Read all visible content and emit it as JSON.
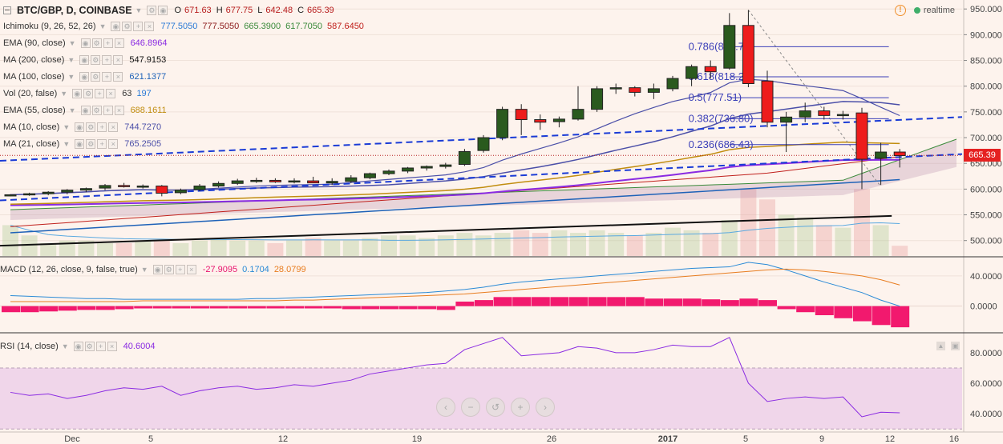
{
  "header": {
    "symbol": "BTC/GBP, D, COINBASE",
    "ohlc": {
      "o_label": "O",
      "o": "671.63",
      "h_label": "H",
      "h": "677.75",
      "l_label": "L",
      "l": "642.48",
      "c_label": "C",
      "c": "665.39"
    },
    "realtime_label": "realtime",
    "warning_symbol": "!"
  },
  "indicators": [
    {
      "name": "Ichimoku (9, 26, 52, 26)",
      "values": [
        "777.5050",
        "777.5050",
        "665.3900",
        "617.7050",
        "587.6450"
      ],
      "colors": [
        "#2a7ad6",
        "#8b1a1a",
        "#3a8a3a",
        "#3a8a3a",
        "#c0201c"
      ]
    },
    {
      "name": "EMA (90, close)",
      "values": [
        "646.8964"
      ],
      "colors": [
        "#8a2be2"
      ]
    },
    {
      "name": "MA (200, close)",
      "values": [
        "547.9153"
      ],
      "colors": [
        "#111111"
      ]
    },
    {
      "name": "MA (100, close)",
      "values": [
        "621.1377"
      ],
      "colors": [
        "#1e62b8"
      ]
    },
    {
      "name": "Vol (20, false)",
      "values": [
        "63",
        "197"
      ],
      "colors": [
        "#333333",
        "#2a7ad6"
      ]
    },
    {
      "name": "EMA (55, close)",
      "values": [
        "688.1611"
      ],
      "colors": [
        "#c18d0f"
      ]
    },
    {
      "name": "MA (10, close)",
      "values": [
        "744.7270"
      ],
      "colors": [
        "#4b4fa8"
      ]
    },
    {
      "name": "MA (21, close)",
      "values": [
        "765.2505"
      ],
      "colors": [
        "#4b4fa8"
      ]
    }
  ],
  "macd_legend": {
    "name": "MACD (12, 26, close, 9, false, true)",
    "values": [
      "-27.9095",
      "0.1704",
      "28.0799"
    ],
    "colors": [
      "#e8156f",
      "#2a8ad6",
      "#e87d20"
    ]
  },
  "rsi_legend": {
    "name": "RSI (14, close)",
    "values": [
      "40.6004"
    ],
    "colors": [
      "#8a2be2"
    ]
  },
  "price_axis": [
    "950.000",
    "900.000",
    "850.000",
    "800.000",
    "750.000",
    "700.000",
    "650.000",
    "600.000",
    "550.000",
    "500.000"
  ],
  "macd_axis": [
    "40.0000",
    "0.0000"
  ],
  "rsi_axis": [
    "80.0000",
    "60.0000",
    "40.0000"
  ],
  "time_axis": [
    "Dec",
    "5",
    "12",
    "19",
    "26",
    "2017",
    "5",
    "9",
    "12",
    "16"
  ],
  "last_price_label": "665.39",
  "navigation": {
    "zoom_out": "−",
    "zoom_in": "+",
    "scroll_left": "‹",
    "reset": "↺",
    "scroll_right": "›"
  },
  "chart_data": [
    {
      "type": "candlestick",
      "title": "BTC/GBP, D, COINBASE",
      "ylim": [
        470,
        955
      ],
      "ohlc": [
        [
          588,
          590,
          586,
          589
        ],
        [
          589,
          593,
          587,
          591
        ],
        [
          591,
          596,
          588,
          594
        ],
        [
          594,
          600,
          590,
          598
        ],
        [
          598,
          603,
          594,
          601
        ],
        [
          602,
          610,
          598,
          607
        ],
        [
          607,
          612,
          603,
          605
        ],
        [
          605,
          609,
          601,
          606
        ],
        [
          606,
          608,
          586,
          592
        ],
        [
          593,
          601,
          590,
          598
        ],
        [
          599,
          610,
          596,
          606
        ],
        [
          606,
          615,
          603,
          611
        ],
        [
          611,
          620,
          608,
          616
        ],
        [
          616,
          622,
          612,
          617
        ],
        [
          617,
          621,
          612,
          614
        ],
        [
          614,
          621,
          611,
          616
        ],
        [
          616,
          624,
          612,
          612
        ],
        [
          612,
          621,
          608,
          615
        ],
        [
          615,
          627,
          612,
          622
        ],
        [
          622,
          632,
          619,
          630
        ],
        [
          630,
          638,
          627,
          635
        ],
        [
          635,
          643,
          631,
          641
        ],
        [
          641,
          646,
          636,
          644
        ],
        [
          644,
          651,
          640,
          647
        ],
        [
          648,
          678,
          645,
          673
        ],
        [
          675,
          705,
          671,
          700
        ],
        [
          700,
          760,
          695,
          755
        ],
        [
          755,
          765,
          705,
          735
        ],
        [
          735,
          745,
          715,
          730
        ],
        [
          731,
          741,
          720,
          736
        ],
        [
          736,
          800,
          733,
          755
        ],
        [
          755,
          800,
          750,
          795
        ],
        [
          795,
          805,
          785,
          797
        ],
        [
          797,
          800,
          780,
          788
        ],
        [
          788,
          805,
          775,
          795
        ],
        [
          795,
          820,
          790,
          815
        ],
        [
          815,
          842,
          800,
          838
        ],
        [
          838,
          850,
          815,
          828
        ],
        [
          835,
          942,
          832,
          918
        ],
        [
          918,
          948,
          798,
          805
        ],
        [
          810,
          830,
          720,
          730
        ],
        [
          730,
          750,
          672,
          740
        ],
        [
          740,
          768,
          730,
          752
        ],
        [
          752,
          760,
          735,
          743
        ],
        [
          743,
          752,
          735,
          745
        ],
        [
          748,
          758,
          600,
          658
        ],
        [
          660,
          690,
          608,
          672
        ],
        [
          672,
          678,
          642,
          665
        ]
      ],
      "fib_levels": [
        {
          "label": "0.786(876.7)",
          "value": 876.7
        },
        {
          "label": "0.618(818.21)",
          "value": 818.21
        },
        {
          "label": "0.5(777.51)",
          "value": 777.51
        },
        {
          "label": "0.382(736.80)",
          "value": 736.8
        },
        {
          "label": "0.236(686.43)",
          "value": 686.43
        }
      ],
      "volume": [
        60,
        40,
        25,
        30,
        30,
        25,
        25,
        30,
        30,
        25,
        30,
        35,
        30,
        30,
        25,
        30,
        35,
        30,
        30,
        35,
        40,
        40,
        35,
        40,
        45,
        40,
        45,
        50,
        45,
        50,
        45,
        50,
        45,
        40,
        45,
        55,
        50,
        45,
        70,
        130,
        110,
        80,
        75,
        60,
        55,
        130,
        60,
        20
      ]
    },
    {
      "type": "line",
      "title": "MACD (12, 26, close, 9, false, true)",
      "ylim": [
        -30,
        60
      ],
      "series": [
        {
          "name": "MACD",
          "values": [
            14,
            13,
            12,
            11,
            10,
            10,
            9,
            9,
            9,
            9,
            9,
            9,
            9,
            10,
            10,
            11,
            12,
            13,
            14,
            15,
            16,
            17,
            18,
            20,
            22,
            25,
            29,
            32,
            34,
            36,
            38,
            40,
            42,
            44,
            46,
            48,
            50,
            51,
            52,
            58,
            55,
            48,
            40,
            32,
            25,
            18,
            8,
            0
          ]
        },
        {
          "name": "Signal",
          "values": [
            6,
            6,
            6,
            6,
            6,
            6,
            6,
            7,
            7,
            7,
            7,
            7,
            7,
            7,
            7,
            8,
            8,
            9,
            10,
            11,
            12,
            13,
            14,
            15,
            16,
            18,
            20,
            22,
            24,
            26,
            28,
            30,
            32,
            34,
            36,
            38,
            40,
            42,
            44,
            46,
            48,
            49,
            48,
            46,
            43,
            40,
            35,
            28
          ]
        },
        {
          "name": "Histogram",
          "values": [
            -8,
            -8,
            -7,
            -6,
            -5,
            -5,
            -4,
            -3,
            -3,
            -3,
            -3,
            -3,
            -3,
            -3,
            -3,
            -3,
            -3,
            -3,
            -4,
            -4,
            -4,
            -4,
            -4,
            -5,
            6,
            8,
            12,
            12,
            12,
            12,
            12,
            12,
            12,
            12,
            10,
            10,
            10,
            9,
            8,
            10,
            8,
            -4,
            -8,
            -12,
            -16,
            -20,
            -25,
            -28
          ]
        }
      ]
    },
    {
      "type": "line",
      "title": "RSI (14, close)",
      "ylim": [
        28,
        92
      ],
      "series": [
        {
          "name": "RSI",
          "values": [
            54,
            52,
            53,
            50,
            52,
            55,
            57,
            56,
            58,
            52,
            55,
            57,
            58,
            56,
            57,
            59,
            58,
            60,
            62,
            66,
            68,
            70,
            72,
            73,
            82,
            86,
            90,
            78,
            79,
            80,
            84,
            83,
            80,
            80,
            82,
            85,
            84,
            84,
            90,
            60,
            48,
            50,
            51,
            50,
            51,
            38,
            41,
            40.6
          ]
        },
        {
          "name": "RSI band",
          "values": [
            30,
            70
          ]
        }
      ]
    }
  ]
}
